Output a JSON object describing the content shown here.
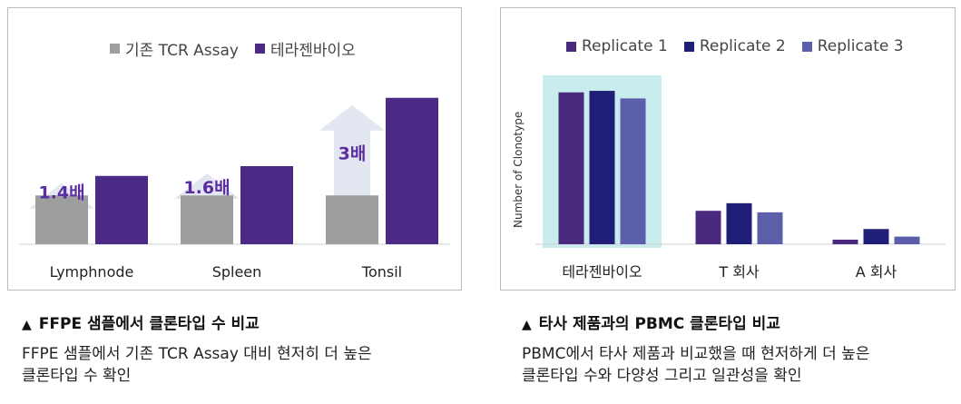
{
  "left": {
    "caption_title": "FFPE 샘플에서 클론타입 수 비교",
    "caption_desc_1": "FFPE 샘플에서 기존 TCR Assay 대비 현저히 더 높은",
    "caption_desc_2": "클론타입 수 확인",
    "caption_icon": "triangle-up-icon"
  },
  "right": {
    "caption_title": "타사 제품과의 PBMC 클론타입 비교",
    "caption_desc_1": "PBMC에서 타사 제품과 비교했을 때 현저하게 더 높은",
    "caption_desc_2": "클론타입 수와 다양성 그리고 일관성을 확인",
    "caption_icon": "triangle-up-icon"
  },
  "chart_data": [
    {
      "type": "bar",
      "categories": [
        "Lymphnode",
        "Spleen",
        "Tonsil"
      ],
      "series": [
        {
          "name": "기존 TCR Assay",
          "values": [
            1.0,
            1.0,
            1.0
          ],
          "color": "#9e9e9e"
        },
        {
          "name": "테라젠바이오",
          "values": [
            1.4,
            1.6,
            3.0
          ],
          "color": "#4b2a85"
        }
      ],
      "annotations": [
        "1.4배",
        "1.6배",
        "3배"
      ],
      "annotation_color": "#5b2d9e",
      "arrow_color": "#e3e7f1",
      "ylim": [
        0,
        3.2
      ],
      "legend": "top-center"
    },
    {
      "type": "bar",
      "categories": [
        "테라젠바이오",
        "T 회사",
        "A 회사"
      ],
      "series": [
        {
          "name": "Replicate 1",
          "values": [
            100,
            22,
            3
          ],
          "color": "#4a2a7e"
        },
        {
          "name": "Replicate 2",
          "values": [
            101,
            27,
            10
          ],
          "color": "#1f1f7a"
        },
        {
          "name": "Replicate 3",
          "values": [
            96,
            21,
            5
          ],
          "color": "#5b5ea8"
        }
      ],
      "ylabel": "Number of Clonotype",
      "ylim": [
        0,
        110
      ],
      "highlight_category": "테라젠바이오",
      "highlight_color": "#c9ecee",
      "legend": "top-center"
    }
  ]
}
